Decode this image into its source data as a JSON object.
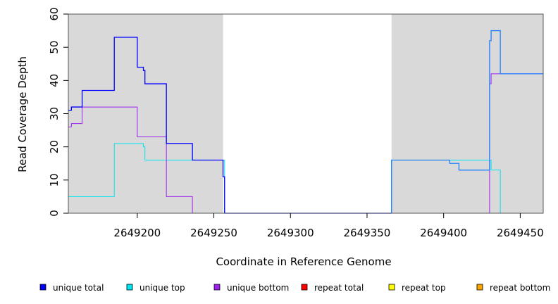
{
  "chart_data": {
    "type": "line",
    "title": "",
    "xlabel": "Coordinate in Reference Genome",
    "ylabel": "Read Coverage Depth",
    "xlim": [
      2649155,
      2649465
    ],
    "ylim": [
      0,
      60
    ],
    "x_ticks": [
      2649200,
      2649250,
      2649300,
      2649350,
      2649400,
      2649450
    ],
    "x_tick_labels": [
      "2649200",
      "2649250",
      "2649300",
      "2649350",
      "2649400",
      "2649450"
    ],
    "y_ticks": [
      0,
      10,
      20,
      30,
      40,
      50,
      60
    ],
    "y_tick_labels": [
      "0",
      "10",
      "20",
      "30",
      "40",
      "50",
      "60"
    ],
    "grid": false,
    "legend_position": "bottom",
    "background_color": "#d9d9d9",
    "shaded_regions": [
      {
        "x_start": 2649155,
        "x_end": 2649256
      },
      {
        "x_start": 2649366,
        "x_end": 2649465
      }
    ],
    "series": [
      {
        "name": "unique total",
        "color": "#0000ff",
        "points": [
          [
            2649155,
            31
          ],
          [
            2649157,
            31
          ],
          [
            2649157,
            32
          ],
          [
            2649164,
            32
          ],
          [
            2649164,
            37
          ],
          [
            2649185,
            37
          ],
          [
            2649185,
            53
          ],
          [
            2649200,
            53
          ],
          [
            2649200,
            44
          ],
          [
            2649204,
            44
          ],
          [
            2649204,
            43
          ],
          [
            2649205,
            43
          ],
          [
            2649205,
            39
          ],
          [
            2649219,
            39
          ],
          [
            2649219,
            21
          ],
          [
            2649236,
            21
          ],
          [
            2649236,
            16
          ],
          [
            2649256,
            16
          ],
          [
            2649256,
            11
          ],
          [
            2649257,
            11
          ],
          [
            2649257,
            0
          ],
          [
            2649366,
            0
          ]
        ]
      },
      {
        "name": "unique top",
        "color": "#00e5ee",
        "points": [
          [
            2649155,
            5
          ],
          [
            2649185,
            5
          ],
          [
            2649185,
            21
          ],
          [
            2649204,
            21
          ],
          [
            2649204,
            20
          ],
          [
            2649205,
            20
          ],
          [
            2649205,
            16
          ],
          [
            2649257,
            16
          ],
          [
            2649257,
            0
          ],
          [
            2649366,
            0
          ],
          [
            2649366,
            16
          ],
          [
            2649431,
            16
          ],
          [
            2649431,
            13
          ],
          [
            2649437,
            13
          ],
          [
            2649437,
            0
          ],
          [
            2649465,
            0
          ]
        ]
      },
      {
        "name": "unique bottom",
        "color": "#a020f0",
        "points": [
          [
            2649155,
            26
          ],
          [
            2649157,
            26
          ],
          [
            2649157,
            27
          ],
          [
            2649164,
            27
          ],
          [
            2649164,
            32
          ],
          [
            2649200,
            32
          ],
          [
            2649200,
            23
          ],
          [
            2649219,
            23
          ],
          [
            2649219,
            5
          ],
          [
            2649236,
            5
          ],
          [
            2649236,
            0
          ],
          [
            2649430,
            0
          ],
          [
            2649430,
            39
          ],
          [
            2649431,
            39
          ],
          [
            2649431,
            42
          ],
          [
            2649465,
            42
          ]
        ]
      },
      {
        "name": "repeat total",
        "color": "#ff0000",
        "points": [
          [
            2649155,
            0
          ],
          [
            2649465,
            0
          ]
        ]
      },
      {
        "name": "repeat top",
        "color": "#ffff00",
        "points": [
          [
            2649155,
            0
          ],
          [
            2649465,
            0
          ]
        ]
      },
      {
        "name": "repeat bottom",
        "color": "#ffa500",
        "points": [
          [
            2649155,
            0
          ],
          [
            2649465,
            0
          ]
        ]
      }
    ],
    "overlay": {
      "color": "#1e7fff",
      "points": [
        [
          2649366,
          0
        ],
        [
          2649366,
          16
        ],
        [
          2649404,
          16
        ],
        [
          2649404,
          15
        ],
        [
          2649410,
          15
        ],
        [
          2649410,
          13
        ],
        [
          2649430,
          13
        ],
        [
          2649430,
          52
        ],
        [
          2649431,
          52
        ],
        [
          2649431,
          55
        ],
        [
          2649437,
          55
        ],
        [
          2649437,
          42
        ],
        [
          2649465,
          42
        ]
      ]
    }
  }
}
